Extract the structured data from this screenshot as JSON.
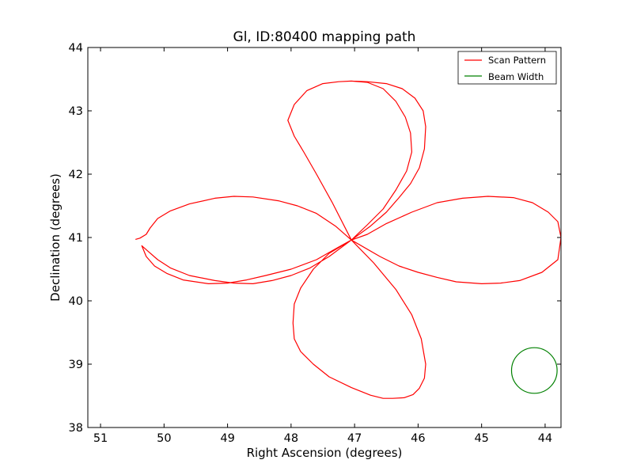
{
  "chart_data": {
    "type": "line",
    "title": "Gl, ID:80400 mapping path",
    "xlabel": "Right Ascension (degrees)",
    "ylabel": "Declination (degrees)",
    "xlim": [
      51.2,
      43.75
    ],
    "ylim": [
      38,
      44
    ],
    "x_inverted": true,
    "xticks": [
      "51",
      "50",
      "49",
      "48",
      "47",
      "46",
      "45",
      "44"
    ],
    "yticks": [
      "38",
      "39",
      "40",
      "41",
      "42",
      "43",
      "44"
    ],
    "grid": false,
    "legend_position": "top-right",
    "colors": {
      "scan": "#ff0000",
      "beam": "#008000"
    },
    "series": [
      {
        "name": "Scan Pattern",
        "x": [
          50.45,
          50.38,
          50.28,
          50.22,
          50.1,
          49.9,
          49.6,
          49.2,
          48.9,
          48.6,
          48.2,
          47.9,
          47.6,
          47.3,
          47.05,
          46.6,
          46.3,
          46.0,
          45.7,
          45.4,
          45.0,
          44.7,
          44.4,
          44.05,
          43.8,
          43.75,
          43.8,
          43.95,
          44.2,
          44.5,
          44.9,
          45.3,
          45.7,
          46.1,
          46.5,
          46.8,
          47.05,
          47.25,
          47.6,
          48.0,
          48.4,
          48.7,
          49.0,
          49.3,
          49.7,
          49.95,
          50.15,
          50.28,
          50.35,
          50.25,
          50.1,
          49.9,
          49.6,
          49.2,
          48.9,
          48.6,
          48.3,
          48.0,
          47.7,
          47.4,
          47.05,
          46.8,
          46.55,
          46.35,
          46.18,
          46.1,
          46.12,
          46.2,
          46.35,
          46.55,
          46.8,
          47.05,
          47.25,
          47.5,
          47.75,
          47.95,
          48.05,
          47.95,
          47.8,
          47.6,
          47.35,
          47.05,
          46.7,
          46.35,
          46.1,
          45.95,
          45.88,
          45.9,
          45.98,
          46.08,
          46.22,
          46.4,
          46.55,
          46.75,
          47.05,
          47.4,
          47.65,
          47.85,
          47.95,
          47.97,
          47.95,
          47.85,
          47.65,
          47.4,
          47.05,
          46.75,
          46.5,
          46.3,
          46.12,
          45.98,
          45.9,
          45.88,
          45.92,
          46.05,
          46.25,
          46.5,
          46.8,
          47.05
        ],
        "y": [
          40.97,
          40.99,
          41.05,
          41.15,
          41.3,
          41.42,
          41.53,
          41.62,
          41.65,
          41.64,
          41.58,
          41.5,
          41.38,
          41.18,
          40.96,
          40.7,
          40.55,
          40.45,
          40.37,
          40.3,
          40.27,
          40.28,
          40.32,
          40.45,
          40.65,
          41.0,
          41.25,
          41.4,
          41.55,
          41.63,
          41.65,
          41.62,
          41.55,
          41.4,
          41.22,
          41.05,
          40.96,
          40.85,
          40.65,
          40.5,
          40.4,
          40.33,
          40.28,
          40.27,
          40.33,
          40.43,
          40.55,
          40.7,
          40.87,
          40.78,
          40.65,
          40.52,
          40.4,
          40.32,
          40.28,
          40.27,
          40.32,
          40.4,
          40.52,
          40.7,
          40.96,
          41.2,
          41.45,
          41.75,
          42.05,
          42.35,
          42.65,
          42.9,
          43.15,
          43.35,
          43.45,
          43.47,
          43.46,
          43.43,
          43.32,
          43.1,
          42.85,
          42.6,
          42.35,
          42.0,
          41.55,
          40.96,
          40.6,
          40.18,
          39.78,
          39.4,
          39.0,
          38.78,
          38.62,
          38.52,
          38.47,
          38.46,
          38.46,
          38.51,
          38.63,
          38.8,
          39.0,
          39.2,
          39.4,
          39.65,
          39.95,
          40.2,
          40.5,
          40.75,
          40.96,
          41.18,
          41.4,
          41.63,
          41.85,
          42.1,
          42.4,
          42.75,
          43.0,
          43.2,
          43.35,
          43.43,
          43.46,
          43.47
        ]
      },
      {
        "name": "Beam Width",
        "circle": {
          "center": [
            44.17,
            38.9
          ],
          "radius_deg_y": 0.36
        }
      }
    ]
  }
}
